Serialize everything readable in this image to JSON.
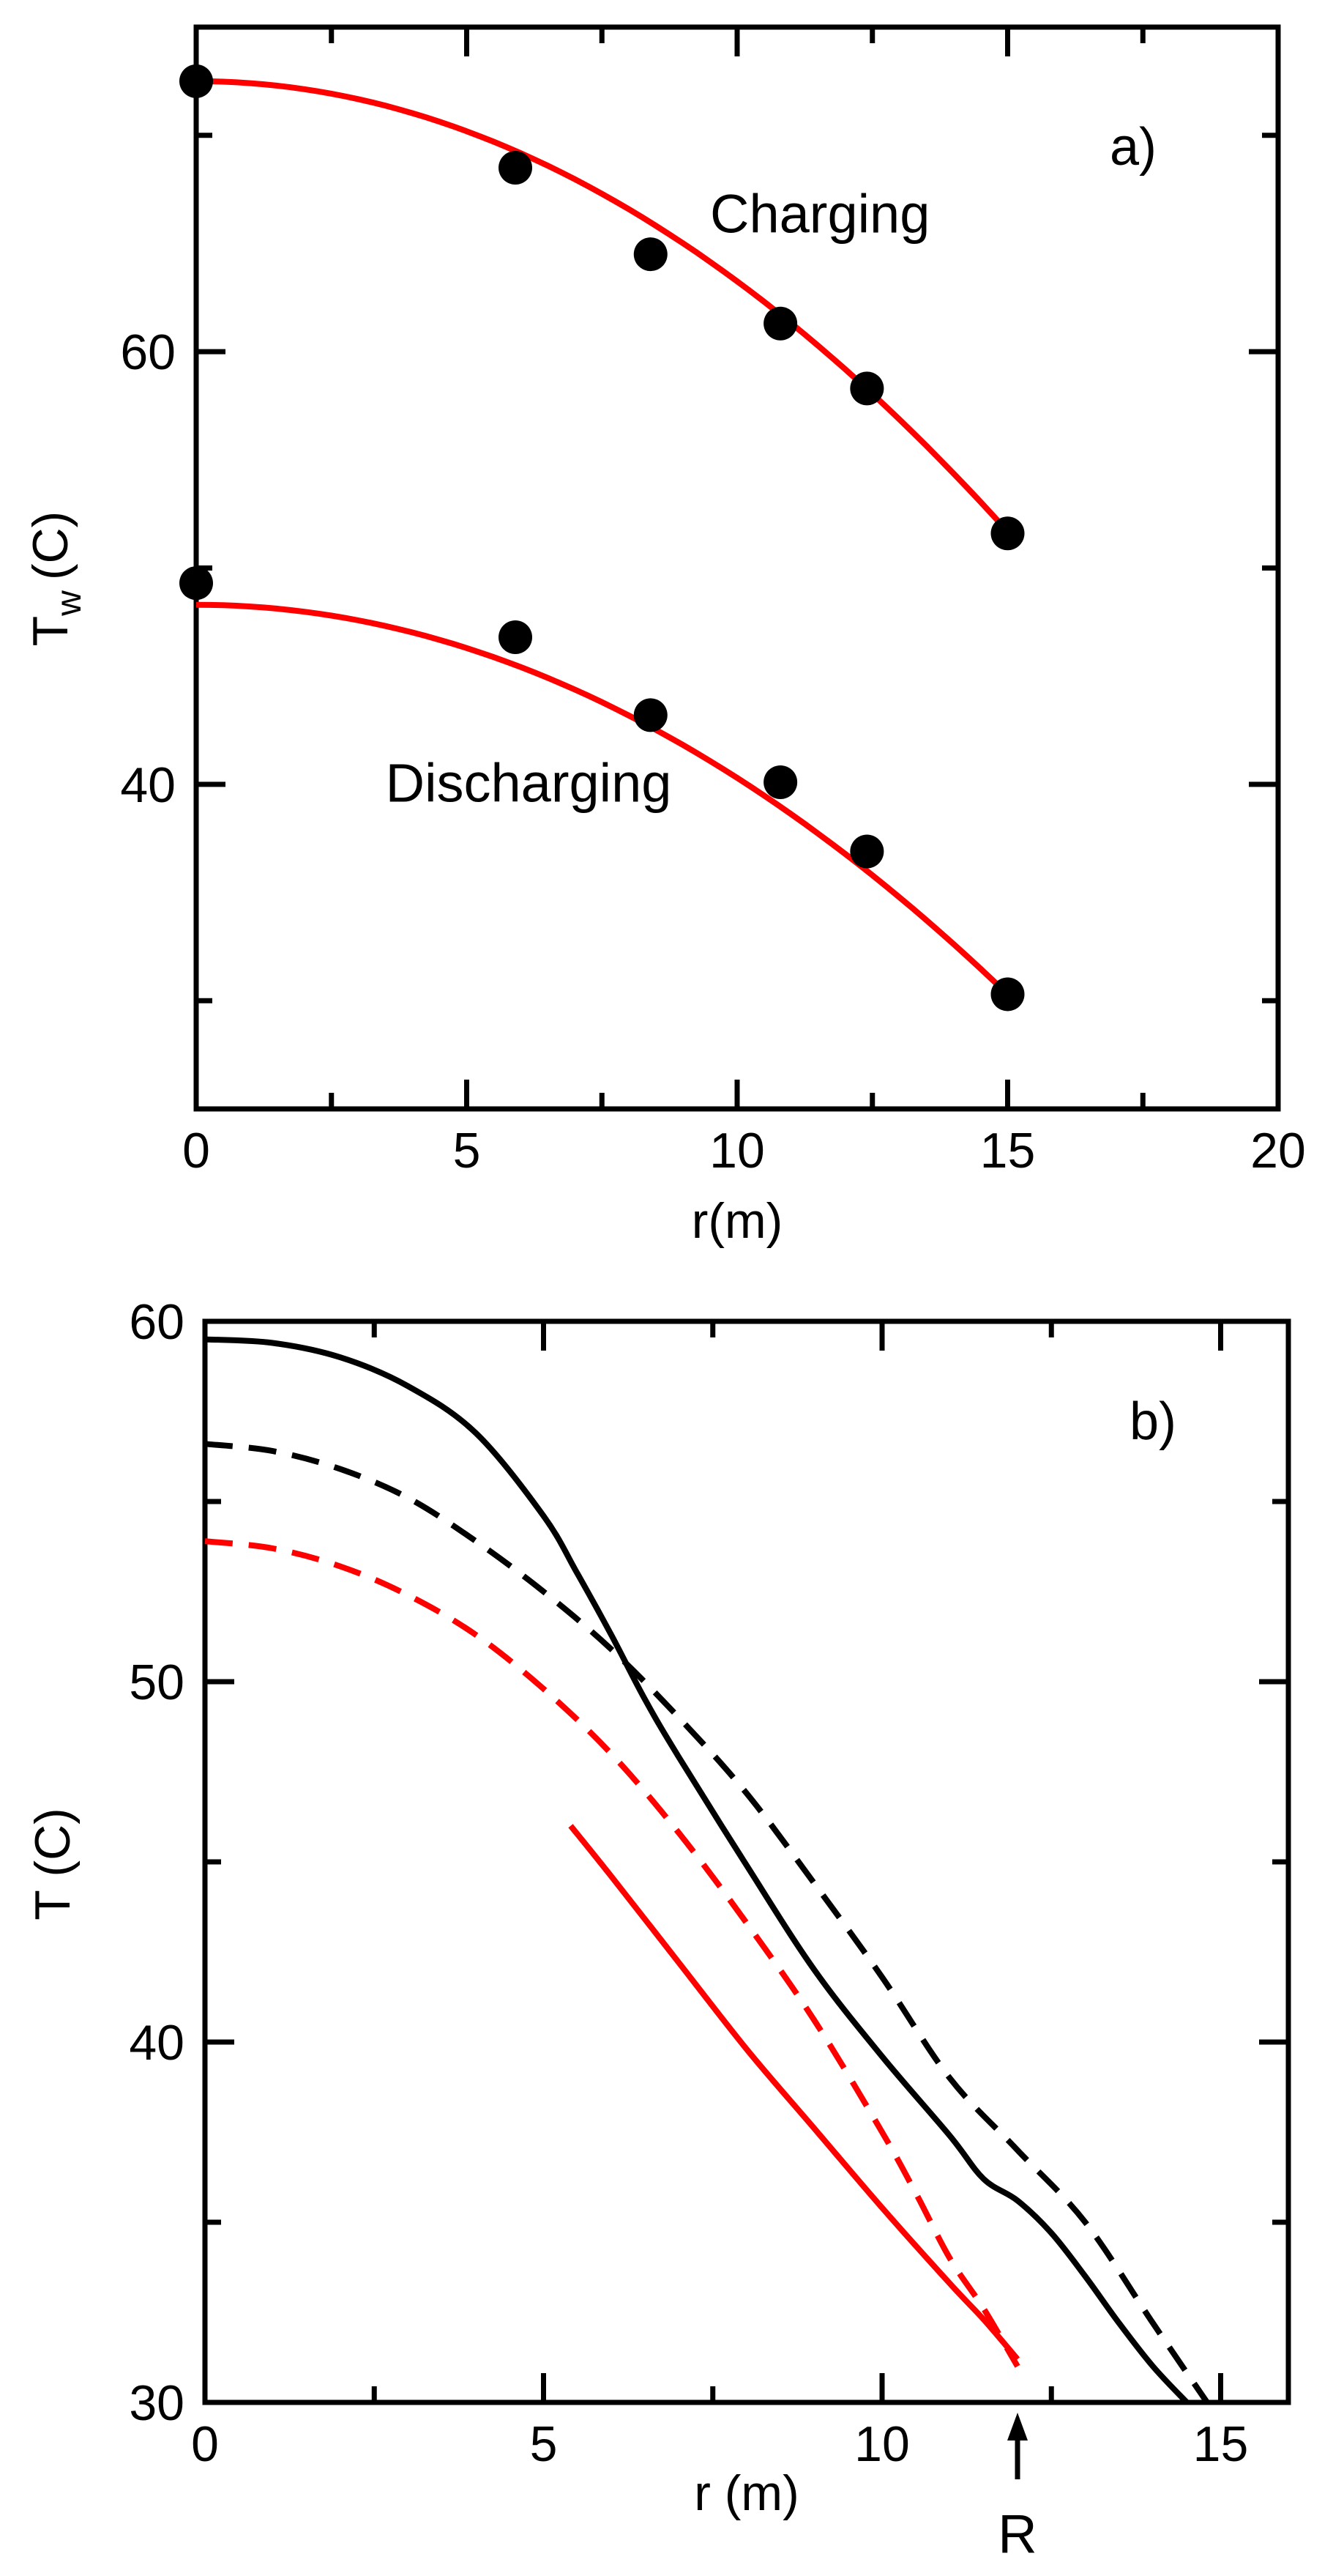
{
  "chart_data": [
    {
      "type": "scatter",
      "panel_label": "a)",
      "xlabel": "r(m)",
      "ylabel": "T",
      "ylabel_sub": "w",
      "ylabel_unit": "(C)",
      "xlim": [
        0,
        20
      ],
      "ylim": [
        25,
        75
      ],
      "xticks": [
        0,
        5,
        10,
        15,
        20
      ],
      "xtick_labels": [
        "0",
        "5",
        "10",
        "15",
        "20"
      ],
      "xticks_minor": [
        2.5,
        7.5,
        12.5,
        17.5
      ],
      "yticks": [
        40,
        60
      ],
      "ytick_labels": [
        "40",
        "60"
      ],
      "yticks_minor": [
        30,
        50,
        70
      ],
      "series": [
        {
          "name": "Charging",
          "points": [
            [
              0,
              72.5
            ],
            [
              5.9,
              68.5
            ],
            [
              8.4,
              64.5
            ],
            [
              10.8,
              61.3
            ],
            [
              12.4,
              58.3
            ],
            [
              15.0,
              51.6
            ]
          ],
          "fit": {
            "a": 72.5,
            "b": 0.0925
          },
          "fit_color": "#ff0000",
          "marker_color": "#000000",
          "label": "Charging",
          "label_pos": [
            9.5,
            65.5
          ]
        },
        {
          "name": "Discharging",
          "points": [
            [
              0,
              49.3
            ],
            [
              5.9,
              46.8
            ],
            [
              8.4,
              43.2
            ],
            [
              10.8,
              40.1
            ],
            [
              12.4,
              36.9
            ],
            [
              15.0,
              30.3
            ]
          ],
          "fit": {
            "a": 48.3,
            "b": 0.08
          },
          "fit_color": "#ff0000",
          "marker_color": "#000000",
          "label": "Discharging",
          "label_pos": [
            3.5,
            39.2
          ]
        }
      ]
    },
    {
      "type": "line",
      "panel_label": "b)",
      "xlabel": "r (m)",
      "ylabel": "T (C)",
      "xlim": [
        0,
        16
      ],
      "ylim": [
        30,
        60
      ],
      "xticks": [
        0,
        5,
        10,
        15
      ],
      "xtick_labels": [
        "0",
        "5",
        "10",
        "15"
      ],
      "xticks_minor": [
        2.5,
        7.5,
        12.5
      ],
      "yticks": [
        30,
        40,
        50,
        60
      ],
      "ytick_labels": [
        "30",
        "40",
        "50",
        "60"
      ],
      "yticks_minor": [
        35,
        45,
        55
      ],
      "annotation": {
        "text": "R",
        "x": 12
      },
      "series": [
        {
          "name": "black solid",
          "color": "#000000",
          "style": "solid",
          "x": [
            0,
            1,
            2,
            3,
            4,
            5,
            5.5,
            6,
            6.5,
            7,
            8,
            9,
            10,
            11,
            11.5,
            12,
            12.5,
            13,
            13.5,
            14,
            14.5
          ],
          "y": [
            59.5,
            59.4,
            59.0,
            58.2,
            56.9,
            54.6,
            53.0,
            51.3,
            49.5,
            47.9,
            44.9,
            42.0,
            39.6,
            37.4,
            36.2,
            35.6,
            34.7,
            33.5,
            32.2,
            31.0,
            30.0
          ]
        },
        {
          "name": "black dashed",
          "color": "#000000",
          "style": "dashed",
          "x": [
            0,
            1,
            2,
            3,
            4,
            5,
            6,
            7,
            8,
            9,
            10,
            11,
            12,
            13,
            14,
            14.8
          ],
          "y": [
            56.6,
            56.4,
            55.9,
            55.1,
            53.9,
            52.5,
            50.9,
            49.0,
            46.9,
            44.4,
            41.8,
            39.0,
            37.0,
            35.0,
            32.2,
            30.0
          ]
        },
        {
          "name": "red dashed",
          "color": "#ff0000",
          "style": "dashed",
          "x": [
            0,
            1,
            2,
            3,
            4,
            5,
            6,
            7,
            8,
            9,
            10,
            10.5,
            11,
            11.5,
            12
          ],
          "y": [
            53.9,
            53.7,
            53.2,
            52.4,
            51.3,
            49.8,
            48.0,
            45.8,
            43.3,
            40.6,
            37.5,
            35.8,
            34.0,
            32.6,
            31.0
          ]
        },
        {
          "name": "red solid",
          "color": "#ff0000",
          "style": "solid",
          "x": [
            5.4,
            6,
            7,
            8,
            9,
            10,
            11,
            11.5,
            12
          ],
          "y": [
            46.0,
            44.6,
            42.2,
            39.8,
            37.6,
            35.4,
            33.3,
            32.3,
            31.2
          ]
        }
      ]
    }
  ]
}
